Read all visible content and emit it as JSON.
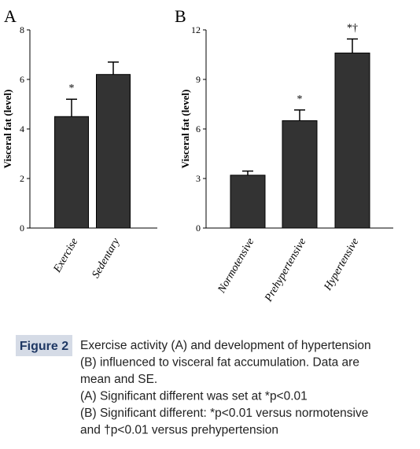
{
  "chart_data": [
    {
      "type": "bar",
      "panel": "A",
      "ylabel": "Visceral fat (level)",
      "categories": [
        "Exercise",
        "Sedentary"
      ],
      "values": [
        4.5,
        6.2
      ],
      "errors": [
        0.7,
        0.5
      ],
      "annotations": [
        "*",
        null
      ],
      "color": "#333333",
      "ylim": [
        0,
        8
      ],
      "yticks": [
        0,
        2,
        4,
        6,
        8
      ]
    },
    {
      "type": "bar",
      "panel": "B",
      "ylabel": "Visceral fat (level)",
      "categories": [
        "Normotensive",
        "Prehypertensive",
        "Hypertensive"
      ],
      "values": [
        3.2,
        6.5,
        10.6
      ],
      "errors": [
        0.25,
        0.65,
        0.85
      ],
      "annotations": [
        null,
        "*",
        "*†"
      ],
      "color": "#333333",
      "ylim": [
        0,
        12
      ],
      "yticks": [
        0,
        3,
        6,
        9,
        12
      ]
    }
  ],
  "caption": {
    "label": "Figure 2",
    "lines": [
      "Exercise activity (A) and development of hypertension",
      "(B) influenced to visceral fat accumulation. Data are",
      "mean and SE.",
      "(A) Significant different was set at *p<0.01",
      "(B) Significant different: *p<0.01 versus normotensive",
      "and †p<0.01 versus prehypertension"
    ]
  }
}
